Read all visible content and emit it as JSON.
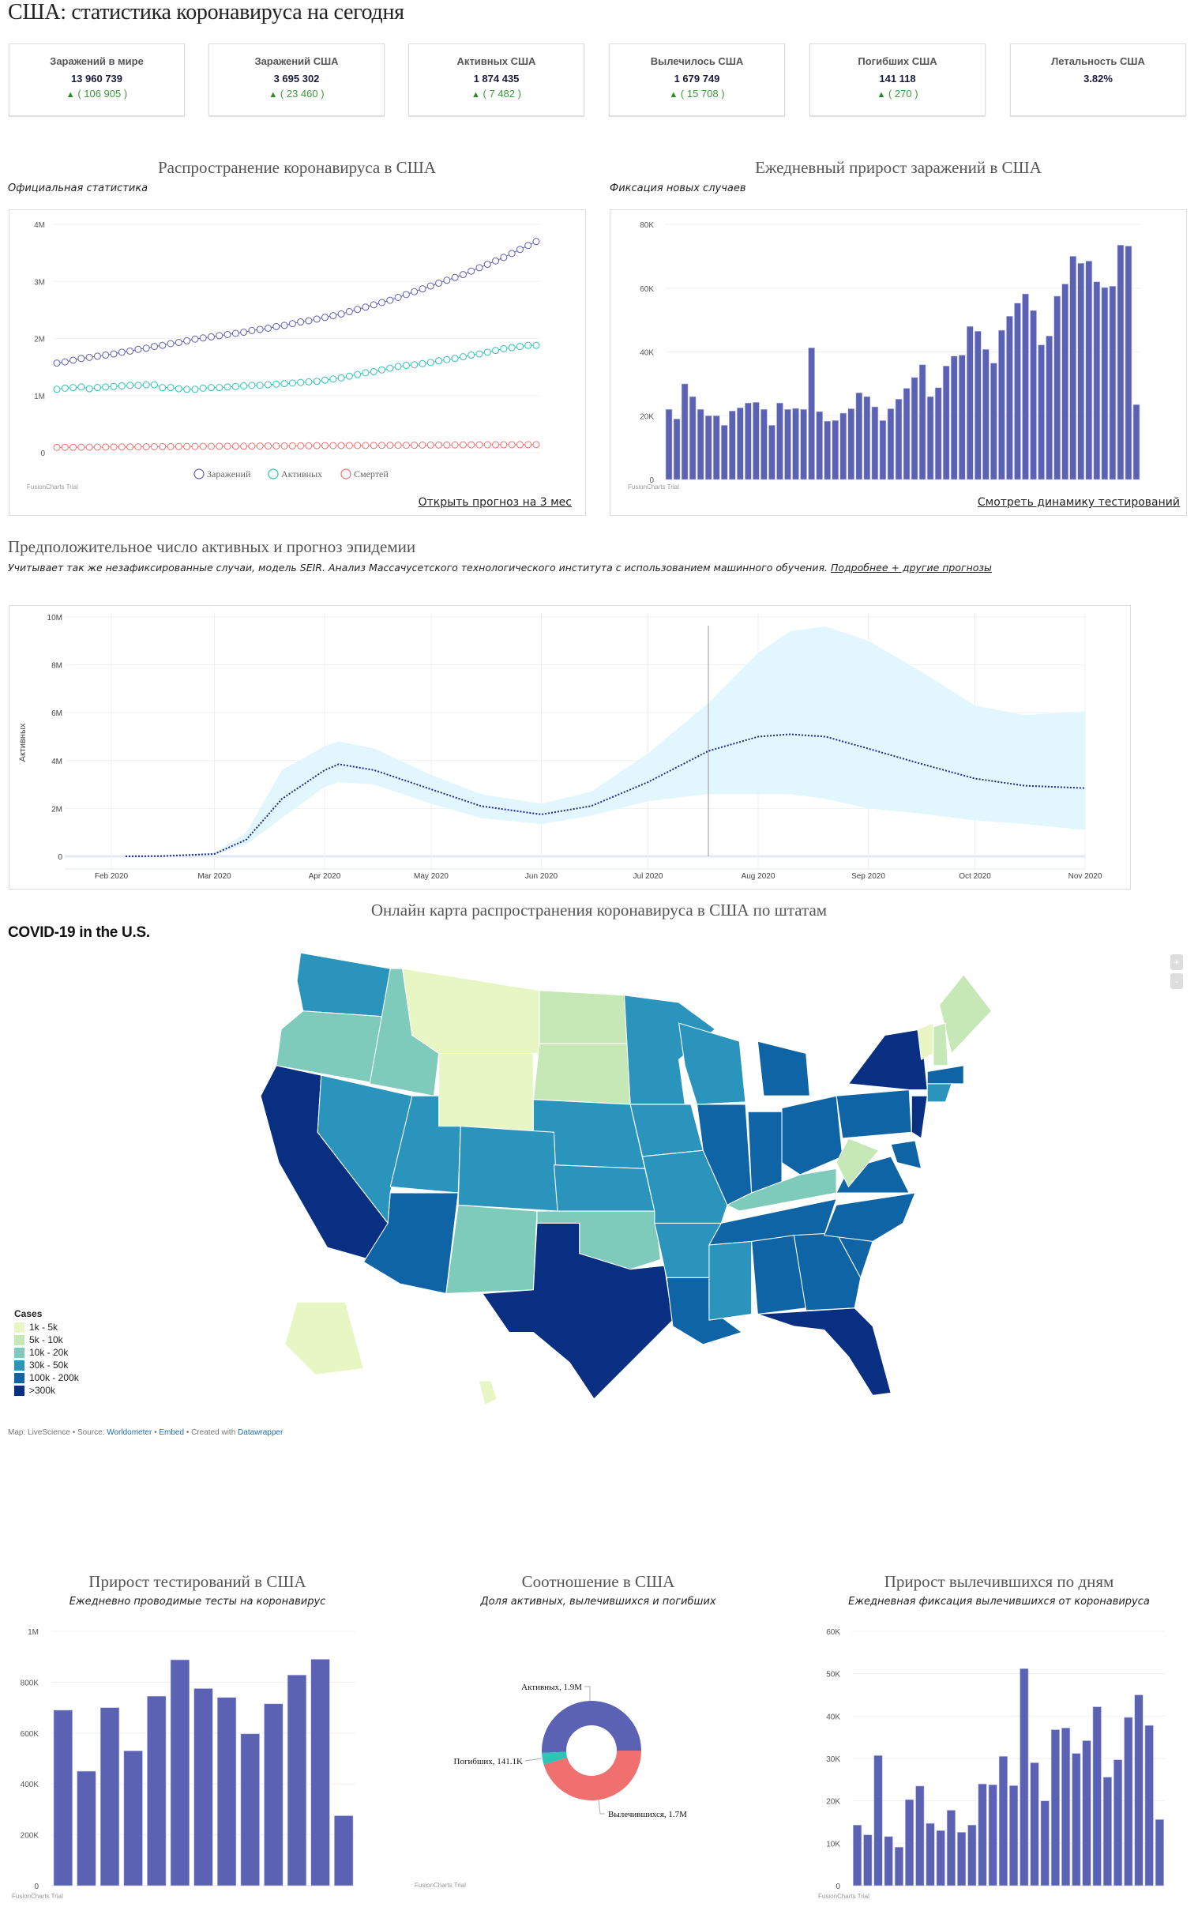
{
  "page_title": "США: статистика коронавируса на сегодня",
  "stats": [
    {
      "label": "Заражений в мире",
      "value": "13 960 739",
      "delta": "( 106 905 )"
    },
    {
      "label": "Заражений США",
      "value": "3 695 302",
      "delta": "( 23 460 )"
    },
    {
      "label": "Активных США",
      "value": "1 874 435",
      "delta": "( 7 482 )"
    },
    {
      "label": "Вылечилось США",
      "value": "1 679 749",
      "delta": "( 15 708 )"
    },
    {
      "label": "Погибших США",
      "value": "141 118",
      "delta": "( 270 )"
    },
    {
      "label": "Летальность США",
      "value": "3.82%",
      "delta": null
    }
  ],
  "delta_icon": "▲",
  "spread": {
    "title": "Распространение коронавируса в США",
    "subtitle": "Официальная статистика",
    "link": "Открыть прогноз на 3 мес",
    "trial": "FusionCharts Trial"
  },
  "daily": {
    "title": "Ежедневный прирост заражений в США",
    "subtitle": "Фиксация новых случаев",
    "link": "Смотреть динамику тестирований",
    "trial": "FusionCharts Trial"
  },
  "forecast": {
    "title": "Предположительное число активных и прогноз эпидемии",
    "subtitle": "Учитывает так же незафиксированные случаи, модель SEIR. Анализ Массачусетского технологического института с использованием машинного обучения.",
    "link": "Подробнее + другие прогнозы"
  },
  "map": {
    "section_title": "Онлайн карта распространения коронавируса в США по штатам",
    "title": "COVID-19 in the U.S.",
    "legend_title": "Cases",
    "legend": [
      {
        "label": "1k - 5k",
        "color": "#e8f6c4"
      },
      {
        "label": "5k - 10k",
        "color": "#c5e8b6"
      },
      {
        "label": "10k - 20k",
        "color": "#7ecbbb"
      },
      {
        "label": "30k - 50k",
        "color": "#2b94bd"
      },
      {
        "label": "100k - 200k",
        "color": "#0f64a5"
      },
      {
        "label": ">300k",
        "color": "#082f82"
      }
    ],
    "states": {
      "WA": 3,
      "OR": 2,
      "ID": 2,
      "MT": 0,
      "WY": 0,
      "ND": 1,
      "SD": 1,
      "NE": 3,
      "CA": 5,
      "NV": 3,
      "UT": 3,
      "CO": 3,
      "AZ": 4,
      "NM": 2,
      "KS": 3,
      "OK": 2,
      "TX": 5,
      "MN": 3,
      "IA": 3,
      "MO": 3,
      "AR": 3,
      "LA": 4,
      "WI": 3,
      "IL": 4,
      "MI": 4,
      "IN": 4,
      "OH": 4,
      "KY": 2,
      "TN": 4,
      "MS": 3,
      "AL": 4,
      "GA": 4,
      "FL": 5,
      "SC": 4,
      "NC": 4,
      "VA": 4,
      "WV": 1,
      "PA": 4,
      "NY": 5,
      "NJ": 5,
      "VT": 0,
      "ME": 1,
      "NH": 1,
      "MA": 4,
      "CT": 3,
      "MD": 4,
      "AK": 0,
      "HI": 0
    },
    "zoom_in": "+",
    "zoom_out": "-",
    "credit_prefix": "Map: LiveScience • Source:",
    "credit_source": "Worldometer",
    "credit_sep": "•",
    "credit_embed": "Embed",
    "credit_created": "• Created with",
    "credit_tool": "Datawrapper"
  },
  "tests": {
    "title": "Прирост тестирований в США",
    "subtitle": "Ежедневно проводимые тесты на коронавирус",
    "trial": "FusionCharts Trial"
  },
  "ratio": {
    "title": "Соотношение в США",
    "subtitle": "Доля активных, вылечившихся и погибших",
    "trial": "FusionCharts Trial"
  },
  "recovered": {
    "title": "Прирост вылечившихся по дням",
    "subtitle": "Ежедневная фиксация вылечившихся от коронавируса",
    "trial": "FusionCharts Trial"
  },
  "chart_data": [
    {
      "id": "spread",
      "type": "line",
      "ylim": [
        0,
        4000000
      ],
      "yticks": [
        "0",
        "1M",
        "2M",
        "3M",
        "4M"
      ],
      "grid": true,
      "legend_position": "bottom",
      "unit": "millions",
      "series": [
        {
          "name": "Заражений",
          "color": "#5c5fb3",
          "values": [
            1.57,
            1.59,
            1.62,
            1.65,
            1.67,
            1.69,
            1.71,
            1.73,
            1.76,
            1.78,
            1.81,
            1.83,
            1.86,
            1.88,
            1.91,
            1.93,
            1.96,
            1.99,
            2.01,
            2.03,
            2.05,
            2.07,
            2.09,
            2.11,
            2.14,
            2.16,
            2.18,
            2.21,
            2.23,
            2.26,
            2.29,
            2.31,
            2.34,
            2.37,
            2.4,
            2.43,
            2.47,
            2.51,
            2.55,
            2.59,
            2.63,
            2.67,
            2.72,
            2.77,
            2.82,
            2.87,
            2.92,
            2.97,
            3.02,
            3.07,
            3.12,
            3.18,
            3.24,
            3.3,
            3.36,
            3.42,
            3.49,
            3.56,
            3.63,
            3.7
          ]
        },
        {
          "name": "Активных",
          "color": "#2ec4b6",
          "values": [
            1.11,
            1.13,
            1.14,
            1.15,
            1.12,
            1.14,
            1.15,
            1.16,
            1.17,
            1.18,
            1.18,
            1.19,
            1.19,
            1.14,
            1.14,
            1.12,
            1.11,
            1.11,
            1.13,
            1.14,
            1.14,
            1.15,
            1.16,
            1.17,
            1.18,
            1.18,
            1.19,
            1.2,
            1.21,
            1.22,
            1.23,
            1.24,
            1.25,
            1.27,
            1.29,
            1.31,
            1.34,
            1.37,
            1.4,
            1.42,
            1.45,
            1.48,
            1.51,
            1.53,
            1.54,
            1.56,
            1.58,
            1.61,
            1.63,
            1.65,
            1.68,
            1.71,
            1.73,
            1.76,
            1.79,
            1.82,
            1.84,
            1.86,
            1.88,
            1.88
          ]
        },
        {
          "name": "Смертей",
          "color": "#f07070",
          "values": [
            0.092,
            0.093,
            0.094,
            0.095,
            0.096,
            0.097,
            0.098,
            0.099,
            0.1,
            0.101,
            0.102,
            0.103,
            0.104,
            0.105,
            0.106,
            0.107,
            0.108,
            0.109,
            0.11,
            0.111,
            0.112,
            0.113,
            0.114,
            0.114,
            0.115,
            0.116,
            0.117,
            0.118,
            0.118,
            0.119,
            0.12,
            0.121,
            0.122,
            0.122,
            0.123,
            0.124,
            0.125,
            0.126,
            0.126,
            0.127,
            0.128,
            0.129,
            0.13,
            0.13,
            0.131,
            0.132,
            0.133,
            0.134,
            0.134,
            0.135,
            0.136,
            0.137,
            0.137,
            0.138,
            0.138,
            0.139,
            0.139,
            0.14,
            0.14,
            0.141
          ]
        }
      ]
    },
    {
      "id": "daily",
      "type": "bar",
      "ylim": [
        0,
        80000
      ],
      "yticks": [
        "0",
        "20K",
        "40K",
        "60K",
        "80K"
      ],
      "grid": true,
      "color": "#5c62b3",
      "values": [
        22000,
        19000,
        30000,
        26000,
        22000,
        20000,
        20000,
        17000,
        21500,
        22500,
        24000,
        24200,
        22000,
        17000,
        24000,
        22000,
        22300,
        22000,
        41300,
        21300,
        18300,
        18500,
        20800,
        22200,
        27200,
        26000,
        22800,
        18500,
        22200,
        25200,
        28600,
        32000,
        36000,
        26000,
        28800,
        35600,
        38700,
        39000,
        48000,
        46500,
        40800,
        36500,
        46800,
        51200,
        55300,
        58200,
        53000,
        42200,
        45000,
        57500,
        61300,
        70000,
        67800,
        68500,
        62000,
        60200,
        60600,
        73500,
        73200,
        23500
      ]
    },
    {
      "id": "forecast",
      "type": "area",
      "ylabel": "Активных",
      "ylim": [
        0,
        10000000
      ],
      "yticks": [
        "0",
        "2M",
        "4M",
        "6M",
        "8M",
        "10M"
      ],
      "xticks": [
        "Feb 2020",
        "Mar 2020",
        "Apr 2020",
        "May 2020",
        "Jun 2020",
        "Jul 2020",
        "Aug 2020",
        "Sep 2020",
        "Oct 2020",
        "Nov 2020"
      ],
      "xlim": [
        "2020-01-20",
        "2020-11-01"
      ],
      "grid": true,
      "today": "2020-07-18",
      "band_color": "#e2f6fd",
      "line_color": "#1f2a8c",
      "unit": "millions",
      "points": [
        {
          "date": "2020-02-05",
          "mean": 0,
          "lower": 0,
          "upper": 0
        },
        {
          "date": "2020-02-15",
          "mean": 0.01,
          "lower": 0.01,
          "upper": 0.01
        },
        {
          "date": "2020-03-01",
          "mean": 0.1,
          "lower": 0.05,
          "upper": 0.15
        },
        {
          "date": "2020-03-10",
          "mean": 0.7,
          "lower": 0.5,
          "upper": 1.0
        },
        {
          "date": "2020-03-20",
          "mean": 2.4,
          "lower": 1.6,
          "upper": 3.6
        },
        {
          "date": "2020-04-01",
          "mean": 3.6,
          "lower": 2.9,
          "upper": 4.6
        },
        {
          "date": "2020-04-05",
          "mean": 3.85,
          "lower": 3.1,
          "upper": 4.8
        },
        {
          "date": "2020-04-15",
          "mean": 3.6,
          "lower": 3.0,
          "upper": 4.5
        },
        {
          "date": "2020-05-01",
          "mean": 2.8,
          "lower": 2.2,
          "upper": 3.4
        },
        {
          "date": "2020-05-15",
          "mean": 2.1,
          "lower": 1.6,
          "upper": 2.6
        },
        {
          "date": "2020-06-01",
          "mean": 1.75,
          "lower": 1.35,
          "upper": 2.2
        },
        {
          "date": "2020-06-15",
          "mean": 2.1,
          "lower": 1.7,
          "upper": 2.7
        },
        {
          "date": "2020-07-01",
          "mean": 3.1,
          "lower": 2.3,
          "upper": 4.3
        },
        {
          "date": "2020-07-18",
          "mean": 4.4,
          "lower": 2.6,
          "upper": 6.4
        },
        {
          "date": "2020-08-01",
          "mean": 5.0,
          "lower": 2.6,
          "upper": 8.5
        },
        {
          "date": "2020-08-10",
          "mean": 5.1,
          "lower": 2.6,
          "upper": 9.4
        },
        {
          "date": "2020-08-20",
          "mean": 5.0,
          "lower": 2.4,
          "upper": 9.6
        },
        {
          "date": "2020-09-01",
          "mean": 4.5,
          "lower": 2.0,
          "upper": 9.0
        },
        {
          "date": "2020-09-15",
          "mean": 3.9,
          "lower": 1.8,
          "upper": 7.8
        },
        {
          "date": "2020-10-01",
          "mean": 3.25,
          "lower": 1.5,
          "upper": 6.3
        },
        {
          "date": "2020-10-15",
          "mean": 2.95,
          "lower": 1.35,
          "upper": 5.9
        },
        {
          "date": "2020-11-01",
          "mean": 2.85,
          "lower": 1.1,
          "upper": 6.05
        }
      ]
    },
    {
      "id": "tests",
      "type": "bar",
      "ylim": [
        0,
        1000000
      ],
      "yticks": [
        "0",
        "200K",
        "400K",
        "600K",
        "800K",
        "1M"
      ],
      "grid": true,
      "color": "#5c62b3",
      "values": [
        690000,
        450000,
        700000,
        530000,
        745000,
        888000,
        775000,
        740000,
        597000,
        715000,
        828000,
        890000,
        275000
      ]
    },
    {
      "id": "ratio",
      "type": "pie",
      "donut": true,
      "slices": [
        {
          "label": "Вылечившихся, 1.7M",
          "value": 1679749,
          "color": "#f07070"
        },
        {
          "label": "Погибших, 141.1K",
          "value": 141118,
          "color": "#2ec4b6"
        },
        {
          "label": "Активных, 1.9M",
          "value": 1874435,
          "color": "#5c62b3"
        }
      ]
    },
    {
      "id": "recovered",
      "type": "bar",
      "ylim": [
        0,
        60000
      ],
      "yticks": [
        "0",
        "10K",
        "20K",
        "30K",
        "40K",
        "50K",
        "60K"
      ],
      "grid": true,
      "color": "#5c62b3",
      "values": [
        14300,
        12000,
        30700,
        11600,
        9100,
        20300,
        23500,
        14700,
        13000,
        17800,
        12600,
        14300,
        24000,
        23800,
        30500,
        23600,
        51200,
        29000,
        20000,
        36800,
        37200,
        31200,
        34200,
        42200,
        25600,
        29700,
        39700,
        45000,
        37800,
        15600
      ]
    }
  ]
}
